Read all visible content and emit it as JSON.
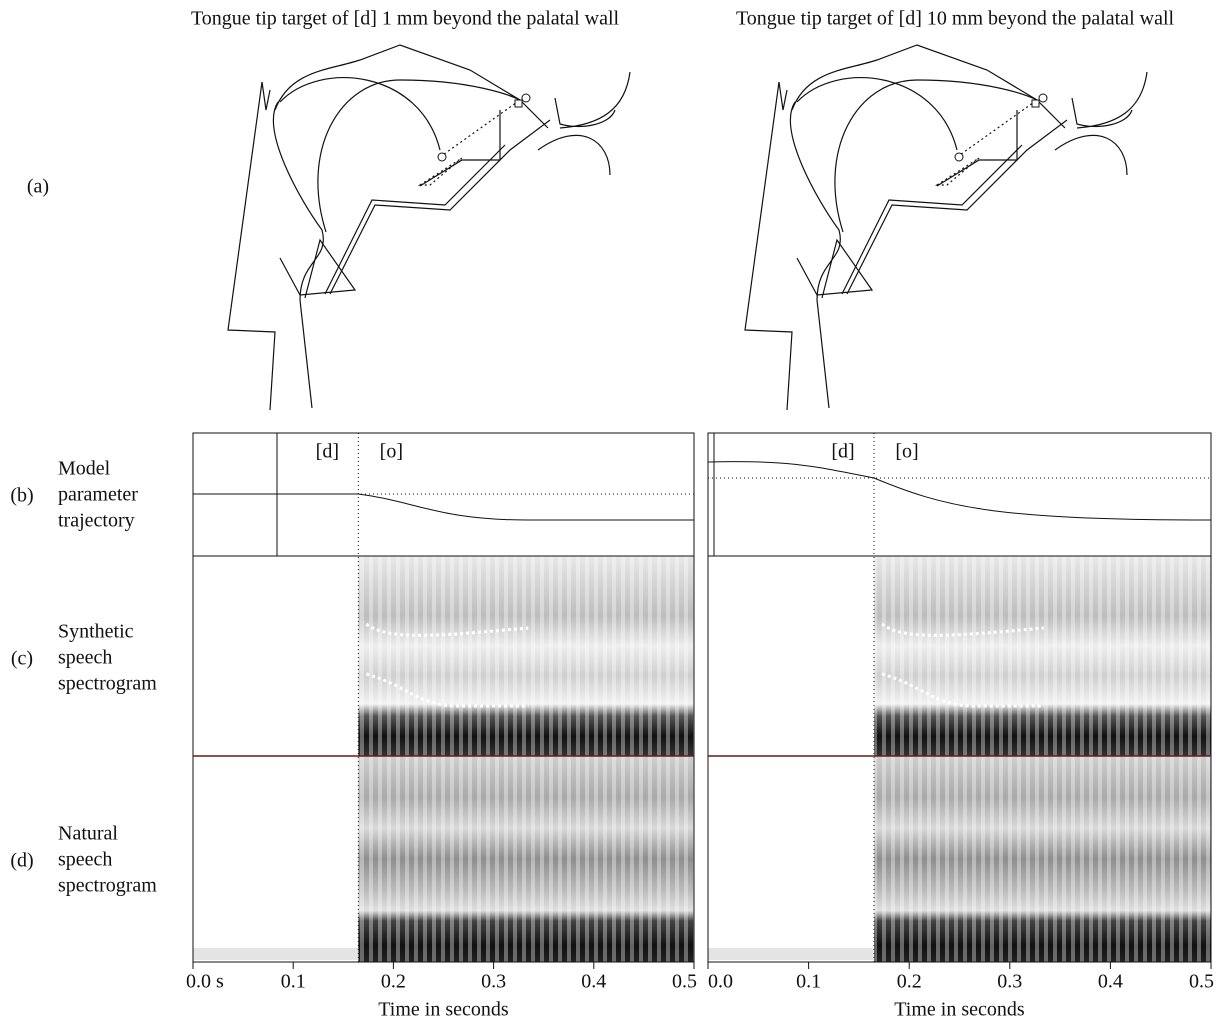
{
  "figure": {
    "row_labels": [
      {
        "tag": "(a)"
      },
      {
        "tag": "(b)",
        "lines": [
          "Model",
          "parameter",
          "trajectory"
        ]
      },
      {
        "tag": "(c)",
        "lines": [
          "Synthetic",
          "speech",
          "spectrogram"
        ]
      },
      {
        "tag": "(d)",
        "lines": [
          "Natural",
          "speech",
          "spectrogram"
        ]
      }
    ],
    "panels": [
      {
        "title": "Tongue tip target of [d] 1 mm beyond the palatal wall",
        "phonemes": [
          "[d]",
          "[o]"
        ],
        "boundary": 0.165,
        "xlim": [
          0,
          0.5
        ],
        "xticks": [
          {
            "value": 0,
            "label": "0.0 s"
          },
          0.1,
          0.2,
          0.3,
          0.4,
          0.5
        ],
        "xlabel": "Time in seconds"
      },
      {
        "title": "Tongue tip target of [d] 10 mm beyond the palatal wall",
        "phonemes": [
          "[d]",
          "[o]"
        ],
        "boundary": 0.165,
        "xlim": [
          0,
          0.5
        ],
        "xticks": [
          {
            "value": 0,
            "label": "0.0"
          },
          0.1,
          0.2,
          0.3,
          0.4,
          0.5
        ],
        "xlabel": "Time in seconds"
      }
    ]
  }
}
